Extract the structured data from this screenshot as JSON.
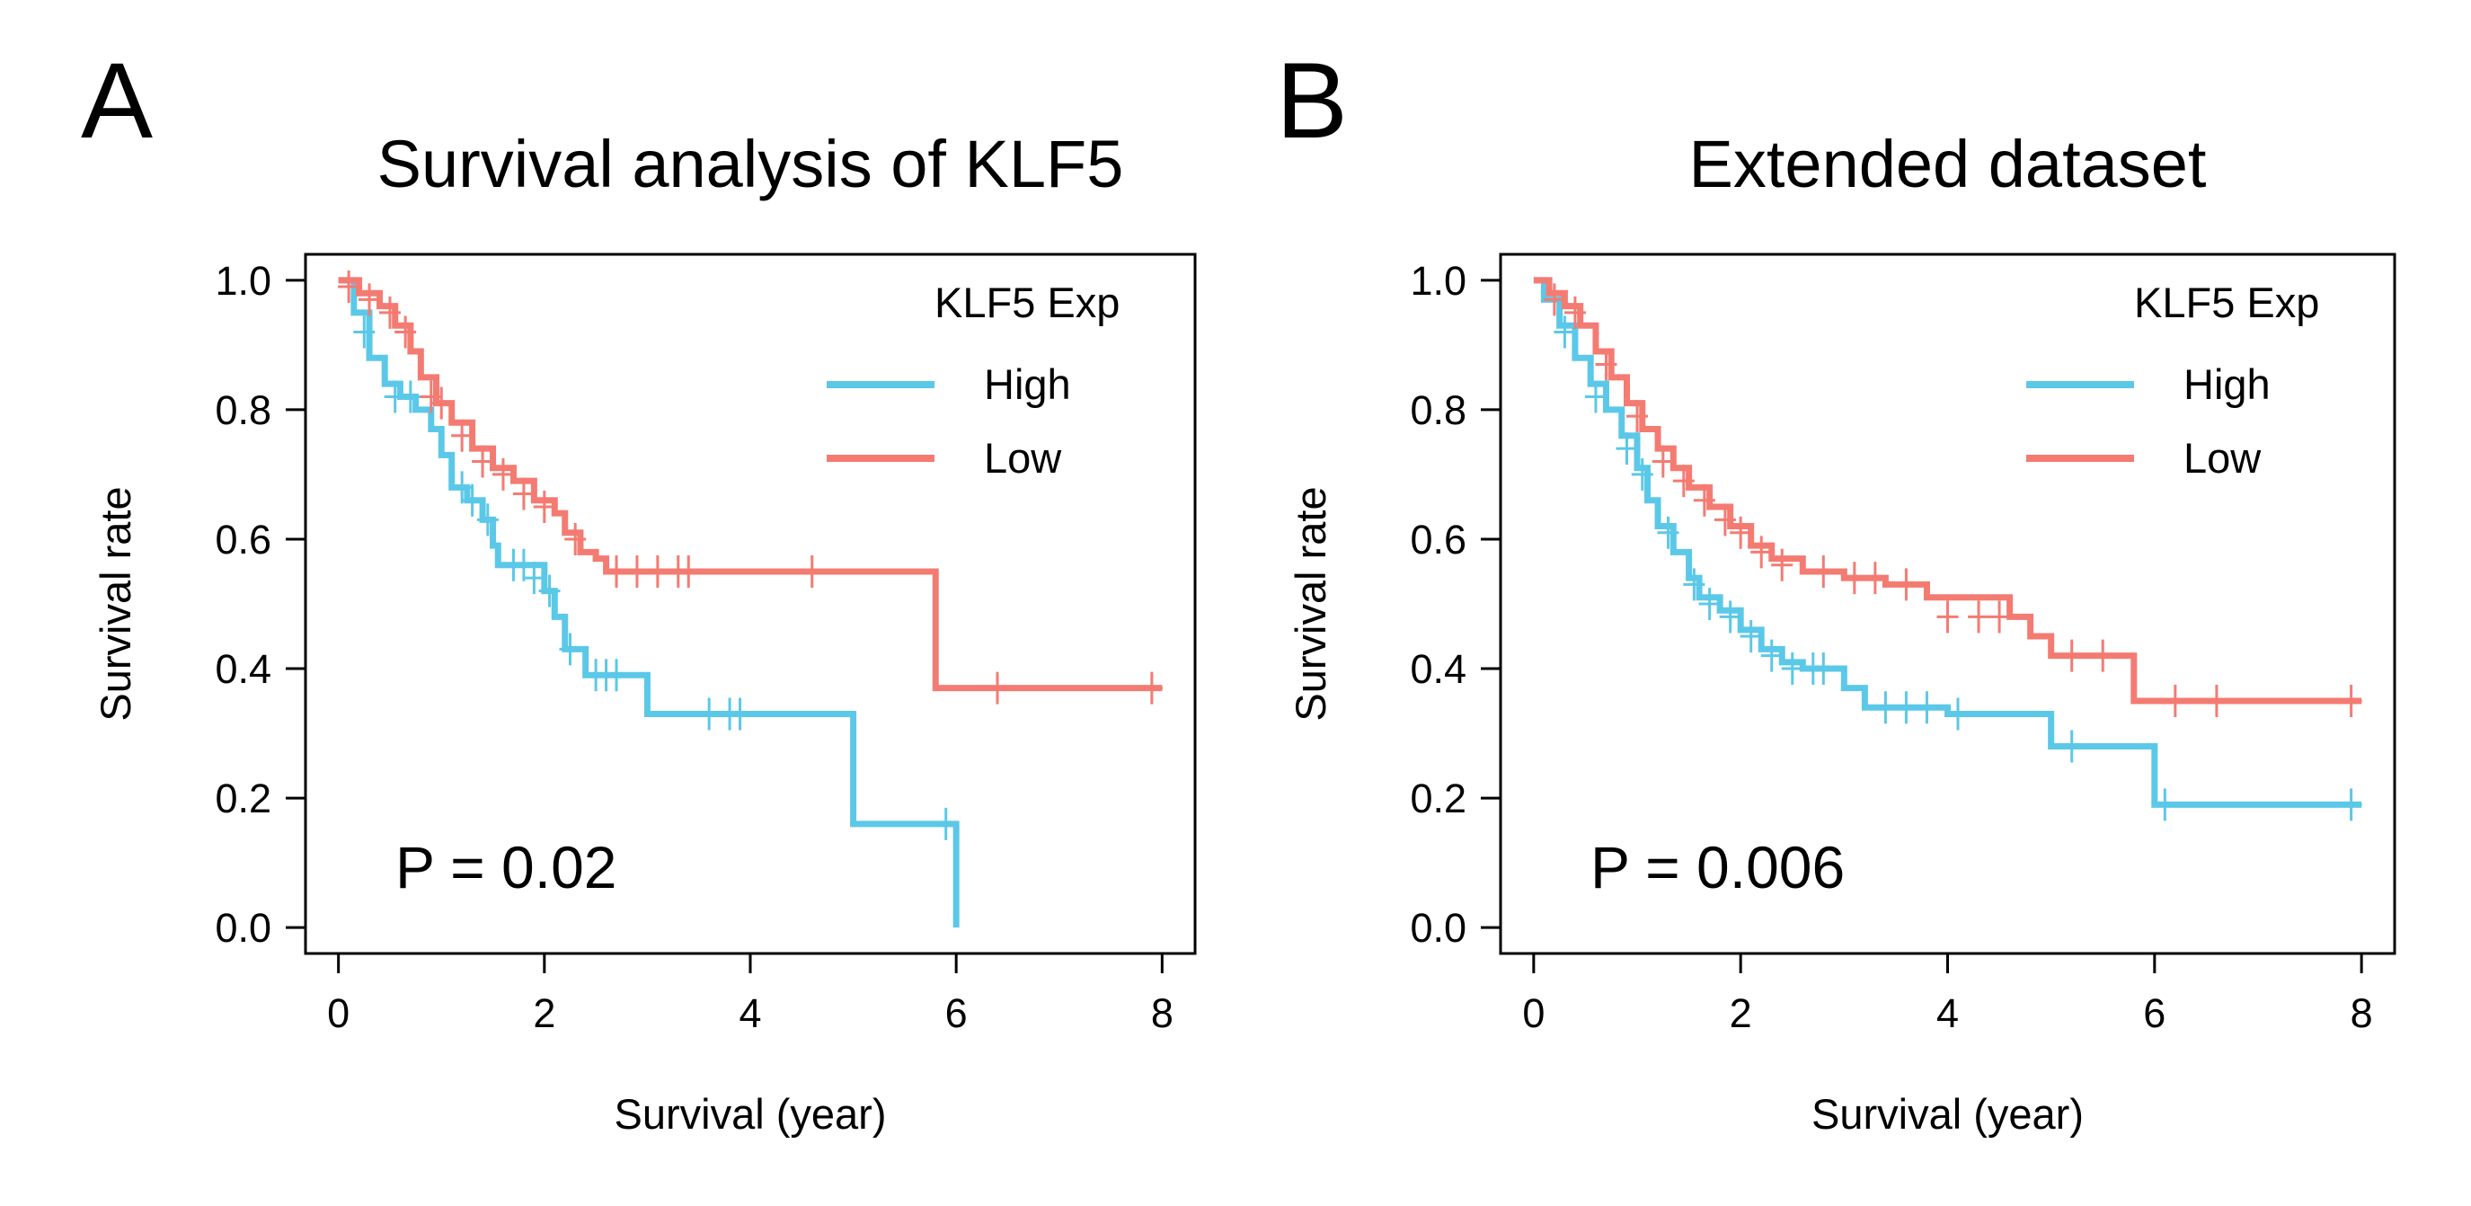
{
  "colors": {
    "high": "#5bc8e8",
    "low": "#f47b72"
  },
  "chart_data": [
    {
      "type": "line",
      "panel": "A",
      "title": "Survival analysis of KLF5",
      "xlabel": "Survival (year)",
      "ylabel": "Survival rate",
      "xlim": [
        0,
        8
      ],
      "ylim": [
        0,
        1
      ],
      "xticks": [
        "0",
        "2",
        "4",
        "6",
        "8"
      ],
      "yticks": [
        "0.0",
        "0.2",
        "0.4",
        "0.6",
        "0.8",
        "1.0"
      ],
      "legend_title": "KLF5 Exp",
      "legend_position": "top-right",
      "pvalue": "P = 0.02",
      "series": [
        {
          "name": "High",
          "color_key": "high",
          "x": [
            0,
            0.15,
            0.3,
            0.45,
            0.6,
            0.75,
            0.9,
            1.0,
            1.1,
            1.25,
            1.4,
            1.5,
            1.55,
            1.65,
            2.0,
            2.1,
            2.2,
            2.4,
            3.0,
            5.0,
            6.0
          ],
          "y": [
            1.0,
            0.95,
            0.88,
            0.84,
            0.82,
            0.8,
            0.77,
            0.73,
            0.68,
            0.66,
            0.63,
            0.59,
            0.56,
            0.56,
            0.52,
            0.48,
            0.43,
            0.39,
            0.33,
            0.16,
            0.0
          ],
          "censor_x": [
            0.25,
            0.55,
            0.7,
            1.2,
            1.3,
            1.45,
            1.7,
            1.8,
            1.9,
            2.05,
            2.25,
            2.5,
            2.6,
            2.7,
            3.6,
            3.8,
            3.9,
            5.9
          ],
          "censor_y": [
            0.92,
            0.82,
            0.82,
            0.68,
            0.66,
            0.63,
            0.56,
            0.56,
            0.54,
            0.52,
            0.43,
            0.39,
            0.39,
            0.39,
            0.33,
            0.33,
            0.33,
            0.16
          ]
        },
        {
          "name": "Low",
          "color_key": "low",
          "x": [
            0,
            0.2,
            0.4,
            0.55,
            0.7,
            0.8,
            0.95,
            1.1,
            1.3,
            1.5,
            1.7,
            1.9,
            2.1,
            2.2,
            2.35,
            2.5,
            2.6,
            5.8,
            8.0
          ],
          "y": [
            1.0,
            0.98,
            0.96,
            0.93,
            0.89,
            0.85,
            0.81,
            0.78,
            0.74,
            0.71,
            0.69,
            0.66,
            0.64,
            0.61,
            0.58,
            0.57,
            0.55,
            0.37,
            0.37
          ],
          "censor_x": [
            0.1,
            0.3,
            0.5,
            0.65,
            0.9,
            1.0,
            1.2,
            1.4,
            1.6,
            1.8,
            2.0,
            2.3,
            2.7,
            2.9,
            3.1,
            3.3,
            3.4,
            4.6,
            6.4,
            7.9
          ],
          "censor_y": [
            0.99,
            0.97,
            0.95,
            0.92,
            0.82,
            0.81,
            0.76,
            0.72,
            0.7,
            0.67,
            0.65,
            0.6,
            0.55,
            0.55,
            0.55,
            0.55,
            0.55,
            0.55,
            0.37,
            0.37
          ]
        }
      ]
    },
    {
      "type": "line",
      "panel": "B",
      "title": "Extended dataset",
      "xlabel": "Survival (year)",
      "ylabel": "Survival rate",
      "xlim": [
        0,
        8
      ],
      "ylim": [
        0,
        1
      ],
      "xticks": [
        "0",
        "2",
        "4",
        "6",
        "8"
      ],
      "yticks": [
        "0.0",
        "0.2",
        "0.4",
        "0.6",
        "0.8",
        "1.0"
      ],
      "legend_title": "KLF5 Exp",
      "legend_position": "top-right",
      "pvalue": "P = 0.006",
      "series": [
        {
          "name": "High",
          "color_key": "high",
          "x": [
            0,
            0.1,
            0.25,
            0.4,
            0.55,
            0.7,
            0.85,
            1.0,
            1.1,
            1.2,
            1.35,
            1.5,
            1.6,
            1.8,
            2.0,
            2.2,
            2.4,
            2.6,
            3.0,
            3.2,
            4.0,
            5.0,
            5.5,
            6.0,
            8.0
          ],
          "y": [
            1.0,
            0.97,
            0.93,
            0.88,
            0.84,
            0.8,
            0.76,
            0.71,
            0.66,
            0.62,
            0.58,
            0.54,
            0.51,
            0.49,
            0.46,
            0.43,
            0.41,
            0.4,
            0.37,
            0.34,
            0.33,
            0.28,
            0.28,
            0.19,
            0.19
          ],
          "censor_x": [
            0.3,
            0.6,
            0.9,
            1.05,
            1.3,
            1.55,
            1.7,
            1.9,
            2.1,
            2.3,
            2.5,
            2.7,
            2.8,
            3.4,
            3.6,
            3.8,
            4.1,
            5.2,
            6.1,
            7.9
          ],
          "censor_y": [
            0.92,
            0.82,
            0.74,
            0.7,
            0.61,
            0.53,
            0.5,
            0.48,
            0.45,
            0.42,
            0.4,
            0.4,
            0.4,
            0.34,
            0.34,
            0.34,
            0.33,
            0.28,
            0.19,
            0.19
          ]
        },
        {
          "name": "Low",
          "color_key": "low",
          "x": [
            0,
            0.15,
            0.3,
            0.45,
            0.6,
            0.75,
            0.9,
            1.05,
            1.2,
            1.35,
            1.5,
            1.7,
            1.9,
            2.1,
            2.3,
            2.6,
            3.0,
            3.4,
            3.8,
            4.6,
            4.8,
            5.0,
            5.8,
            8.0
          ],
          "y": [
            1.0,
            0.98,
            0.96,
            0.93,
            0.89,
            0.85,
            0.81,
            0.77,
            0.74,
            0.71,
            0.68,
            0.65,
            0.62,
            0.59,
            0.57,
            0.55,
            0.54,
            0.53,
            0.51,
            0.48,
            0.45,
            0.42,
            0.35,
            0.35
          ],
          "censor_x": [
            0.2,
            0.4,
            0.7,
            1.0,
            1.25,
            1.45,
            1.65,
            1.85,
            2.0,
            2.2,
            2.4,
            2.8,
            3.1,
            3.3,
            3.6,
            4.0,
            4.3,
            4.5,
            5.2,
            5.5,
            6.2,
            6.6,
            7.9
          ],
          "censor_y": [
            0.97,
            0.95,
            0.87,
            0.79,
            0.72,
            0.69,
            0.66,
            0.63,
            0.61,
            0.58,
            0.56,
            0.55,
            0.54,
            0.54,
            0.53,
            0.48,
            0.48,
            0.48,
            0.42,
            0.42,
            0.35,
            0.35,
            0.35
          ]
        }
      ]
    }
  ]
}
